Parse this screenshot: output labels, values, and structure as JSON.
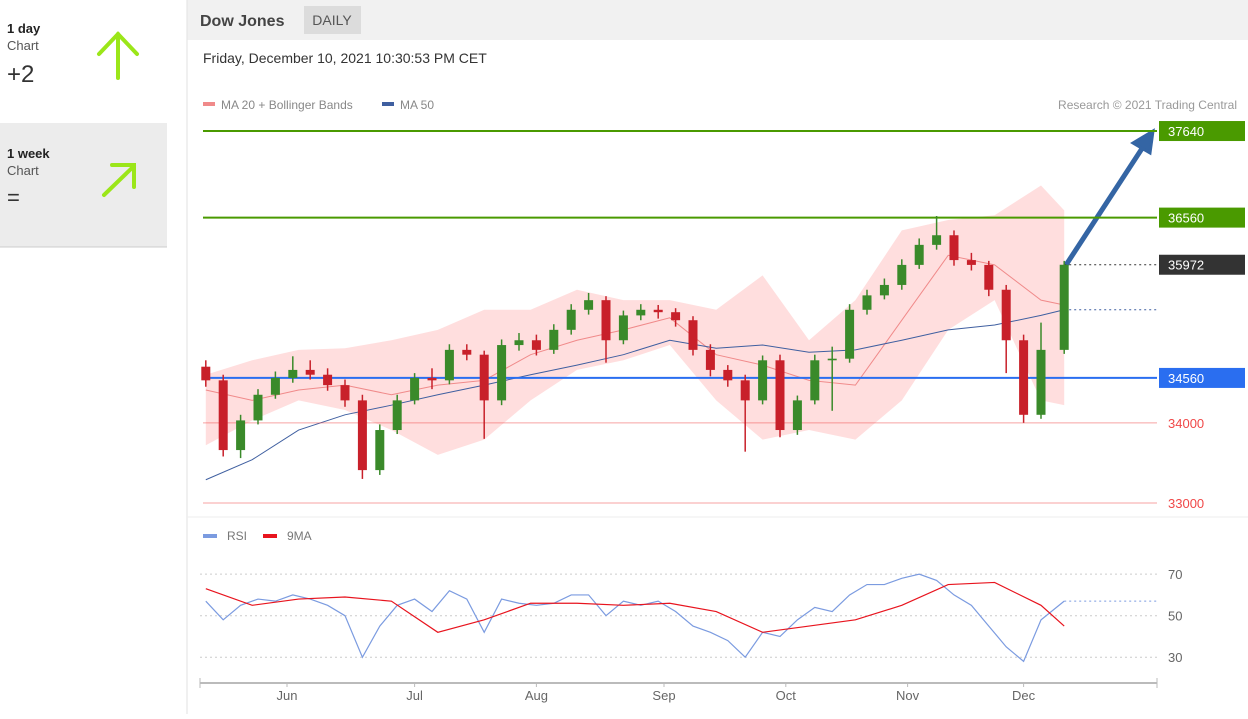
{
  "sidebar": [
    {
      "period": "1 day",
      "kind": "Chart",
      "score": "+2"
    },
    {
      "period": "1 week",
      "kind": "Chart",
      "score": "="
    }
  ],
  "header": {
    "title": "Dow Jones",
    "interval": "DAILY",
    "datetime": "Friday, December 10, 2021 10:30:53 PM CET",
    "credit": "Research © 2021 Trading Central"
  },
  "chart_data": [
    {
      "type": "candlestick",
      "legend": [
        {
          "name": "MA 20 + Bollinger Bands",
          "color": "#f08a8a"
        },
        {
          "name": "MA 50",
          "color": "#3f5fa0"
        }
      ],
      "xlim": [
        -1,
        164
      ],
      "xticks": [
        {
          "value": 14,
          "label": "Jun"
        },
        {
          "value": 36,
          "label": "Jul"
        },
        {
          "value": 57,
          "label": "Aug"
        },
        {
          "value": 79,
          "label": "Sep"
        },
        {
          "value": 100,
          "label": "Oct"
        },
        {
          "value": 121,
          "label": "Nov"
        },
        {
          "value": 141,
          "label": "Dec"
        }
      ],
      "ylim": [
        32850,
        37840
      ],
      "up_color": "#3a8a2a",
      "down_color": "#c8202a",
      "candles": {
        "x": [
          0,
          3,
          6,
          9,
          12,
          15,
          18,
          21,
          24,
          27,
          30,
          33,
          36,
          39,
          42,
          45,
          48,
          51,
          54,
          57,
          60,
          63,
          66,
          69,
          72,
          75,
          78,
          81,
          84,
          87,
          90,
          93,
          96,
          99,
          102,
          105,
          108,
          111,
          114,
          117,
          120,
          123,
          126,
          129,
          132,
          135,
          138,
          141,
          144,
          148
        ],
        "open": [
          34700,
          34530,
          33660,
          34030,
          34350,
          34560,
          34660,
          34600,
          34470,
          34280,
          33410,
          33910,
          34280,
          34560,
          34530,
          34910,
          34850,
          34280,
          34970,
          35030,
          34910,
          35160,
          35410,
          35530,
          35030,
          35340,
          35410,
          35380,
          35280,
          34910,
          34660,
          34530,
          34280,
          34780,
          33910,
          34280,
          34780,
          34800,
          35410,
          35590,
          35720,
          35970,
          36220,
          36340,
          36030,
          35970,
          35660,
          35030,
          34100,
          34910
        ],
        "high": [
          34780,
          34600,
          34100,
          34420,
          34640,
          34830,
          34780,
          34680,
          34540,
          34350,
          33980,
          34350,
          34620,
          34680,
          34980,
          34980,
          34900,
          35040,
          35120,
          35100,
          35230,
          35480,
          35620,
          35580,
          35400,
          35480,
          35470,
          35430,
          35330,
          34980,
          34720,
          34600,
          34840,
          34850,
          34340,
          34850,
          34950,
          35480,
          35660,
          35800,
          36040,
          36300,
          36580,
          36400,
          36120,
          36020,
          35720,
          35100,
          35250,
          36020
        ],
        "low": [
          34450,
          33580,
          33560,
          33980,
          34300,
          34500,
          34540,
          34400,
          34200,
          33300,
          33350,
          33860,
          34230,
          34420,
          34480,
          34780,
          33800,
          34220,
          34900,
          34840,
          34860,
          35100,
          35350,
          34750,
          34980,
          35280,
          35300,
          35200,
          34840,
          34580,
          34450,
          33640,
          34230,
          33820,
          33850,
          34230,
          34150,
          34750,
          35350,
          35540,
          35660,
          35920,
          36160,
          35960,
          35900,
          35580,
          34620,
          34000,
          34050,
          34860
        ],
        "close": [
          34530,
          33660,
          34030,
          34350,
          34560,
          34660,
          34600,
          34470,
          34280,
          33410,
          33910,
          34280,
          34560,
          34530,
          34910,
          34850,
          34280,
          34970,
          35030,
          34910,
          35160,
          35410,
          35530,
          35030,
          35340,
          35410,
          35380,
          35280,
          34910,
          34660,
          34530,
          34280,
          34780,
          33910,
          34280,
          34780,
          34800,
          35410,
          35590,
          35720,
          35970,
          36220,
          36340,
          36030,
          35970,
          35660,
          35030,
          34100,
          34910,
          35972
        ]
      },
      "indicators": {
        "x": [
          0,
          8,
          16,
          24,
          32,
          40,
          48,
          56,
          64,
          72,
          80,
          88,
          96,
          104,
          112,
          120,
          128,
          136,
          144,
          148
        ],
        "upper": [
          34600,
          34780,
          34910,
          34930,
          35030,
          35160,
          35410,
          35410,
          35660,
          35530,
          35530,
          35410,
          35840,
          35030,
          35530,
          36400,
          36530,
          36590,
          36960,
          36650
        ],
        "lower": [
          33720,
          34030,
          34280,
          34160,
          33910,
          33600,
          33790,
          34280,
          34660,
          34780,
          34970,
          34280,
          33790,
          33910,
          33790,
          34280,
          35160,
          35530,
          34280,
          34220
        ],
        "ma20": [
          34410,
          34280,
          34410,
          34470,
          34350,
          34470,
          34530,
          34850,
          35030,
          35160,
          35310,
          34850,
          34720,
          34530,
          34470,
          35280,
          36090,
          35970,
          35530,
          35470
        ],
        "ma50": [
          33290,
          33540,
          33910,
          34100,
          34220,
          34350,
          34470,
          34600,
          34720,
          34850,
          35030,
          34930,
          34970,
          34880,
          34910,
          35030,
          35160,
          35220,
          35340,
          35410
        ]
      },
      "levels": [
        {
          "value": 37640,
          "color": "#4a9a00",
          "box": true
        },
        {
          "value": 36560,
          "color": "#4a9a00",
          "box": true
        },
        {
          "value": 35972,
          "color": "#333333",
          "box": true
        },
        {
          "value": 34560,
          "color": "#2a6ef0",
          "box": true
        },
        {
          "value": 34000,
          "color": "#f04848",
          "box": false
        },
        {
          "value": 33000,
          "color": "#f04848",
          "box": false
        }
      ]
    },
    {
      "type": "line",
      "xlim": [
        -1,
        164
      ],
      "ylim": [
        20,
        85
      ],
      "yticks": [
        30,
        50,
        70
      ],
      "series": [
        {
          "name": "RSI",
          "color": "#7b9be0",
          "x": [
            0,
            3,
            6,
            9,
            12,
            15,
            18,
            21,
            24,
            27,
            30,
            33,
            36,
            39,
            42,
            45,
            48,
            51,
            54,
            57,
            60,
            63,
            66,
            69,
            72,
            75,
            78,
            81,
            84,
            87,
            90,
            93,
            96,
            99,
            102,
            105,
            108,
            111,
            114,
            117,
            120,
            123,
            126,
            129,
            132,
            135,
            138,
            141,
            144,
            148
          ],
          "values": [
            57,
            48,
            55,
            58,
            57,
            60,
            58,
            55,
            50,
            30,
            45,
            55,
            58,
            52,
            62,
            58,
            42,
            58,
            56,
            55,
            56,
            60,
            60,
            50,
            57,
            55,
            57,
            52,
            45,
            42,
            38,
            30,
            42,
            40,
            48,
            54,
            52,
            60,
            65,
            65,
            68,
            70,
            67,
            60,
            55,
            45,
            35,
            28,
            48,
            57
          ]
        },
        {
          "name": "9MA",
          "color": "#e8141e",
          "x": [
            0,
            8,
            16,
            24,
            32,
            40,
            48,
            56,
            64,
            72,
            80,
            88,
            96,
            104,
            112,
            120,
            128,
            136,
            144,
            148
          ],
          "values": [
            63,
            55,
            58,
            59,
            57,
            42,
            48,
            56,
            56,
            55,
            56,
            52,
            42,
            45,
            48,
            55,
            65,
            66,
            55,
            45
          ]
        }
      ]
    }
  ]
}
